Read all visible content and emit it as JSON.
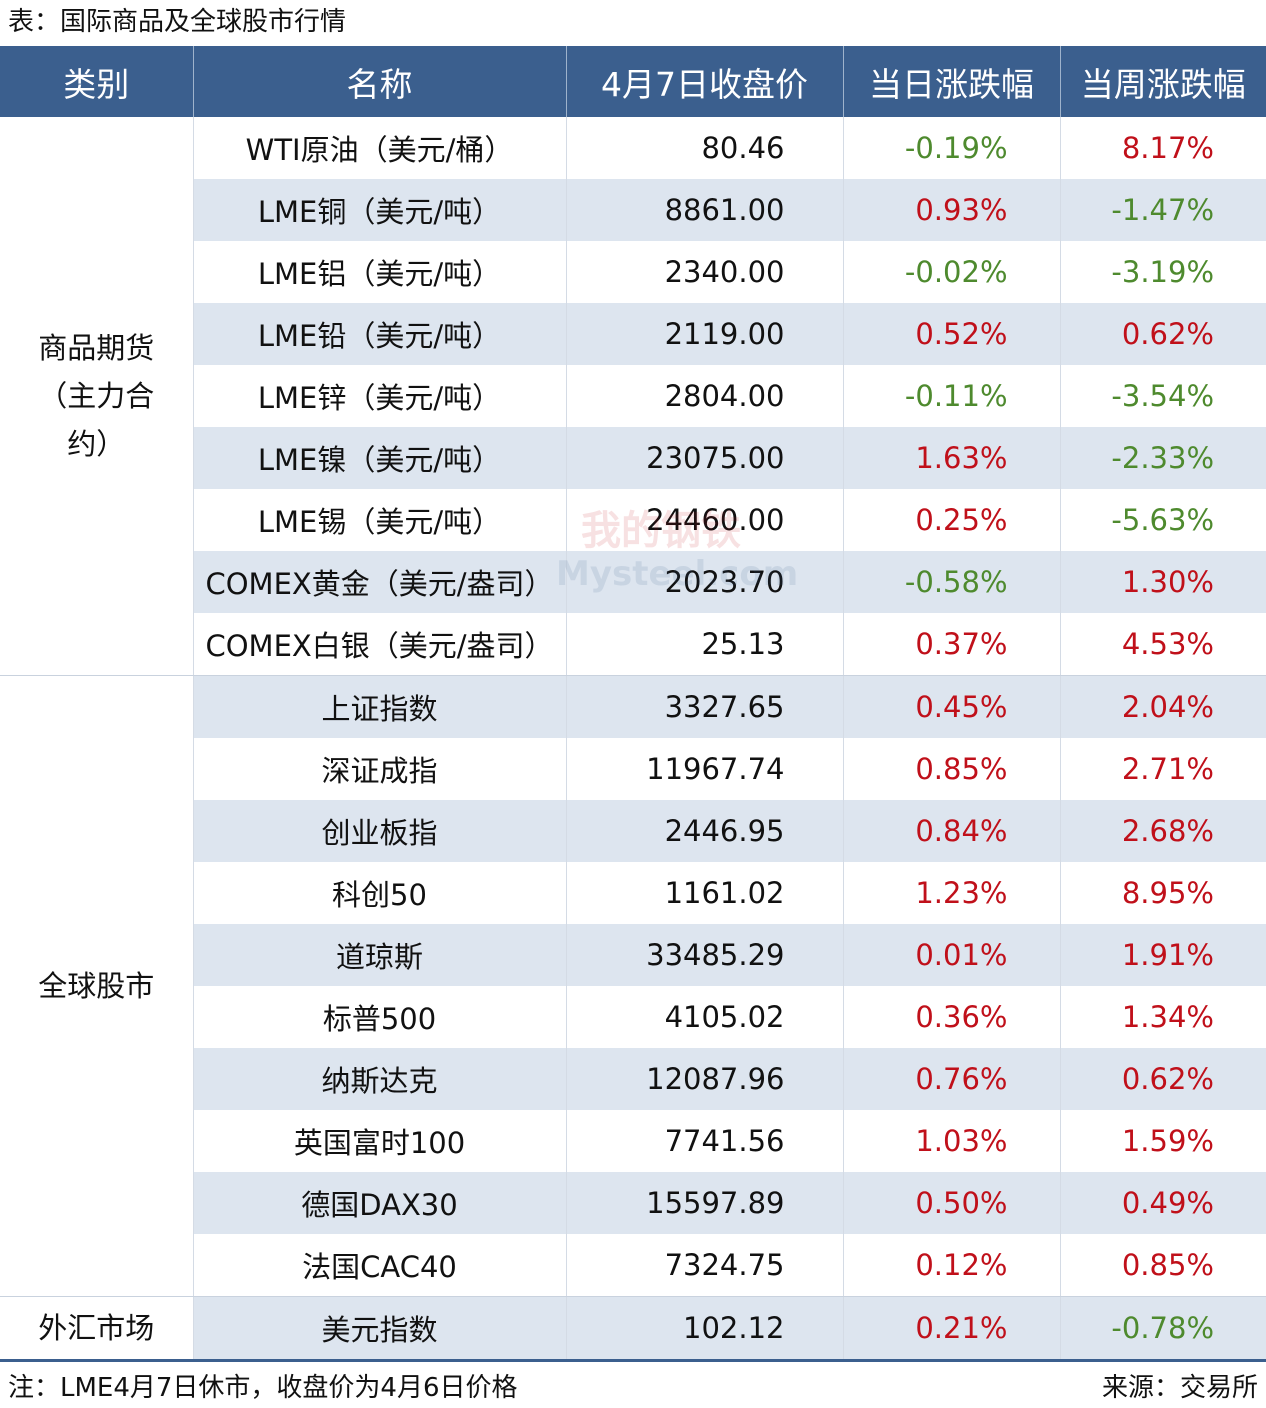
{
  "caption": "表：国际商品及全球股市行情",
  "headers": [
    "类别",
    "名称",
    "4月7日收盘价",
    "当日涨跌幅",
    "当周涨跌幅"
  ],
  "categories": {
    "commodities": "商品期货（主力合约）",
    "stocks": "全球股市",
    "fx": "外汇市场"
  },
  "rows": [
    {
      "name": "WTI原油（美元/桶）",
      "price": "80.46",
      "day": "-0.19%",
      "week": "8.17%"
    },
    {
      "name": "LME铜（美元/吨）",
      "price": "8861.00",
      "day": "0.93%",
      "week": "-1.47%"
    },
    {
      "name": "LME铝（美元/吨）",
      "price": "2340.00",
      "day": "-0.02%",
      "week": "-3.19%"
    },
    {
      "name": "LME铅（美元/吨）",
      "price": "2119.00",
      "day": "0.52%",
      "week": "0.62%"
    },
    {
      "name": "LME锌（美元/吨）",
      "price": "2804.00",
      "day": "-0.11%",
      "week": "-3.54%"
    },
    {
      "name": "LME镍（美元/吨）",
      "price": "23075.00",
      "day": "1.63%",
      "week": "-2.33%"
    },
    {
      "name": "LME锡（美元/吨）",
      "price": "24460.00",
      "day": "0.25%",
      "week": "-5.63%"
    },
    {
      "name": "COMEX黄金（美元/盎司）",
      "price": "2023.70",
      "day": "-0.58%",
      "week": "1.30%"
    },
    {
      "name": "COMEX白银（美元/盎司）",
      "price": "25.13",
      "day": "0.37%",
      "week": "4.53%"
    },
    {
      "name": "上证指数",
      "price": "3327.65",
      "day": "0.45%",
      "week": "2.04%"
    },
    {
      "name": "深证成指",
      "price": "11967.74",
      "day": "0.85%",
      "week": "2.71%"
    },
    {
      "name": "创业板指",
      "price": "2446.95",
      "day": "0.84%",
      "week": "2.68%"
    },
    {
      "name": "科创50",
      "price": "1161.02",
      "day": "1.23%",
      "week": "8.95%"
    },
    {
      "name": "道琼斯",
      "price": "33485.29",
      "day": "0.01%",
      "week": "1.91%"
    },
    {
      "name": "标普500",
      "price": "4105.02",
      "day": "0.36%",
      "week": "1.34%"
    },
    {
      "name": "纳斯达克",
      "price": "12087.96",
      "day": "0.76%",
      "week": "0.62%"
    },
    {
      "name": "英国富时100",
      "price": "7741.56",
      "day": "1.03%",
      "week": "1.59%"
    },
    {
      "name": "德国DAX30",
      "price": "15597.89",
      "day": "0.50%",
      "week": "0.49%"
    },
    {
      "name": "法国CAC40",
      "price": "7324.75",
      "day": "0.12%",
      "week": "0.85%"
    },
    {
      "name": "美元指数",
      "price": "102.12",
      "day": "0.21%",
      "week": "-0.78%"
    }
  ],
  "watermark": {
    "cn": "我的钢铁",
    "en": "Mysteel.com"
  },
  "footer": {
    "note": "注：LME4月7日休市，收盘价为4月6日价格",
    "source": "来源：交易所"
  },
  "colors": {
    "header_bg": "#3b5f8e",
    "stripe_bg": "#dde5ef",
    "up": "#c0101a",
    "down": "#4e8a2e"
  }
}
